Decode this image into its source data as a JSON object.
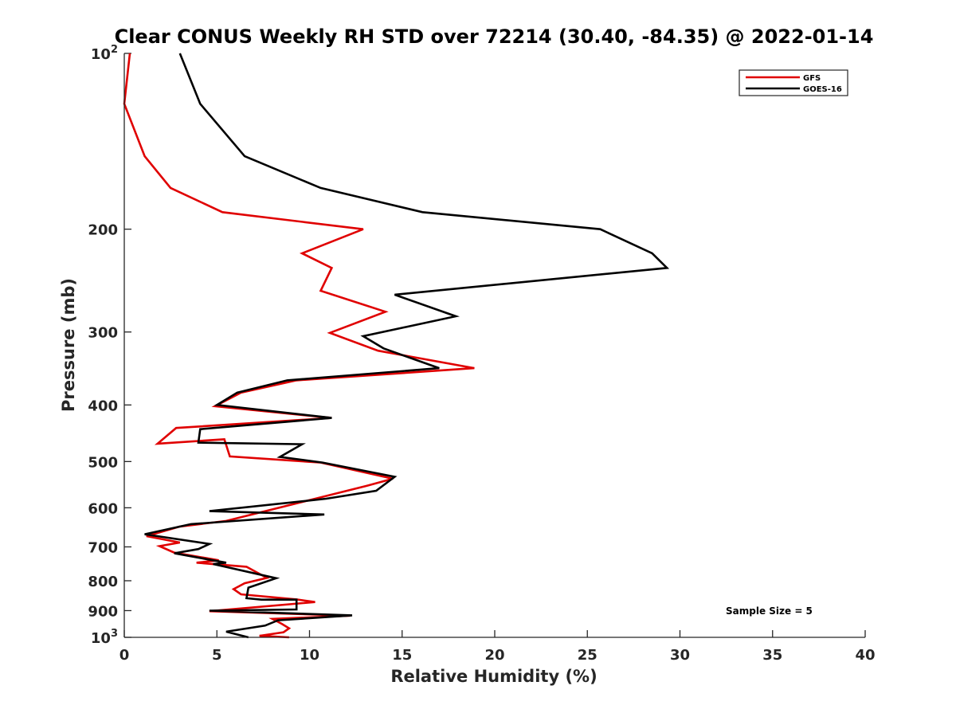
{
  "chart_data": {
    "type": "line",
    "title": "Clear CONUS Weekly RH STD over 72214 (30.40, -84.35) @ 2022-01-14",
    "xlabel": "Relative Humidity (%)",
    "ylabel": "Pressure (mb)",
    "xlim": [
      0,
      40
    ],
    "ylim": [
      100,
      1000
    ],
    "yscale": "log",
    "y_reversed": true,
    "x_ticks": [
      0,
      5,
      10,
      15,
      20,
      25,
      30,
      35,
      40
    ],
    "x_tick_labels": [
      "0",
      "5",
      "10",
      "15",
      "20",
      "25",
      "30",
      "35",
      "40"
    ],
    "y_ticks": [
      100,
      200,
      300,
      400,
      500,
      600,
      700,
      800,
      900,
      1000
    ],
    "y_tick_labels": [
      {
        "base": "10",
        "exp": "2"
      },
      {
        "base": "200",
        "exp": ""
      },
      {
        "base": "300",
        "exp": ""
      },
      {
        "base": "400",
        "exp": ""
      },
      {
        "base": "500",
        "exp": ""
      },
      {
        "base": "600",
        "exp": ""
      },
      {
        "base": "700",
        "exp": ""
      },
      {
        "base": "800",
        "exp": ""
      },
      {
        "base": "900",
        "exp": ""
      },
      {
        "base": "10",
        "exp": "3"
      }
    ],
    "legend": {
      "position": "top-right",
      "entries": [
        "GFS",
        "GOES-16"
      ]
    },
    "annotation": "Sample Size = 5",
    "series": [
      {
        "name": "GFS",
        "color": "#e00000",
        "x": [
          0.3,
          0.0,
          1.1,
          2.5,
          5.3,
          12.9,
          9.6,
          11.2,
          10.6,
          14.1,
          11.1,
          13.7,
          18.9,
          9.3,
          6.3,
          4.9,
          11.2,
          2.8,
          1.8,
          5.4,
          5.7,
          10.6,
          14.5,
          13.1,
          10.2,
          5.5,
          3.0,
          1.2,
          3.0,
          1.9,
          2.7,
          5.1,
          3.9,
          6.6,
          7.7,
          6.5,
          5.9,
          6.3,
          9.3,
          10.3,
          4.6,
          12.2,
          8.0,
          8.5,
          8.9,
          8.6,
          7.3,
          8.9
        ]
      },
      {
        "name": "GOES-16",
        "color": "#000000",
        "x": [
          3.0,
          4.1,
          6.5,
          10.6,
          16.1,
          25.7,
          28.5,
          29.3,
          14.6,
          17.9,
          12.9,
          14.0,
          17.0,
          8.8,
          6.1,
          5.0,
          11.2,
          4.1,
          4.0,
          9.6,
          8.4,
          10.7,
          14.6,
          13.6,
          10.9,
          4.6,
          10.8,
          3.6,
          1.1,
          4.6,
          4.0,
          2.7,
          5.5,
          4.8,
          8.2,
          6.7,
          6.6,
          7.4,
          9.3,
          9.3,
          4.6,
          12.3,
          8.3,
          7.6,
          5.5,
          6.7
        ]
      }
    ],
    "series_pressure": {
      "GFS": [
        100,
        122,
        150,
        170,
        187,
        200,
        220,
        233,
        255,
        277,
        301,
        323,
        346,
        363,
        381,
        402,
        421,
        438,
        466,
        458,
        490,
        502,
        535,
        550,
        580,
        632,
        646,
        671,
        688,
        698,
        716,
        738,
        745,
        757,
        791,
        808,
        827,
        844,
        861,
        870,
        902,
        918,
        930,
        948,
        965,
        980,
        994,
        1000
      ],
      "GOES-16": [
        100,
        122,
        150,
        170,
        187,
        200,
        220,
        233,
        259,
        282,
        305,
        320,
        346,
        363,
        381,
        400,
        421,
        440,
        464,
        467,
        491,
        502,
        531,
        561,
        579,
        608,
        616,
        640,
        666,
        692,
        706,
        718,
        745,
        749,
        792,
        822,
        857,
        862,
        862,
        896,
        900,
        917,
        935,
        955,
        978,
        1000
      ]
    }
  }
}
